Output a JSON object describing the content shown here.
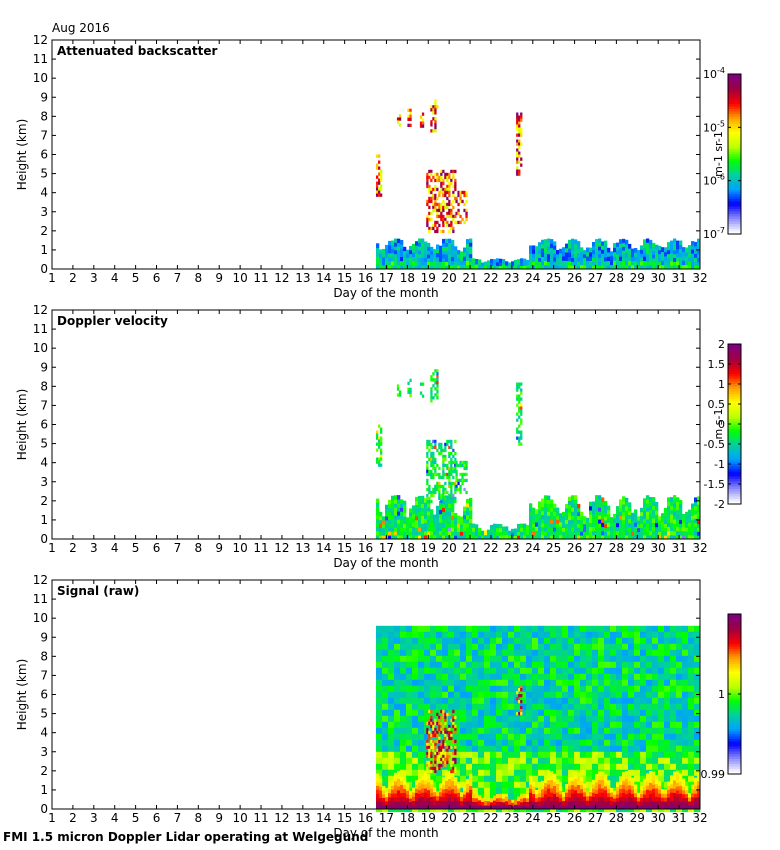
{
  "header": {
    "date": "Aug 2016"
  },
  "footer": {
    "caption": "FMI 1.5 micron Doppler Lidar operating at Welgegund"
  },
  "chart_data": [
    {
      "type": "heatmap",
      "title": "Attenuated backscatter",
      "xlabel": "Day of the month",
      "ylabel": "Height (km)",
      "xlim": [
        1,
        32
      ],
      "ylim": [
        0,
        12
      ],
      "x_ticks": [
        "1",
        "2",
        "3",
        "4",
        "5",
        "6",
        "7",
        "8",
        "9",
        "10",
        "11",
        "12",
        "13",
        "14",
        "15",
        "16",
        "17",
        "18",
        "19",
        "20",
        "21",
        "22",
        "23",
        "24",
        "25",
        "26",
        "27",
        "28",
        "29",
        "30",
        "31",
        "32"
      ],
      "y_ticks": [
        "0",
        "1",
        "2",
        "3",
        "4",
        "5",
        "6",
        "7",
        "8",
        "9",
        "10",
        "11",
        "12"
      ],
      "colorbar": {
        "label": "m-1 sr-1",
        "scale": "log",
        "ticks": [
          "10-7",
          "10-6",
          "10-5",
          "10-4"
        ],
        "colormap": [
          "#ffffff",
          "#8a8aff",
          "#0000ff",
          "#00a0ff",
          "#00d0a0",
          "#00ff00",
          "#c0ff00",
          "#ffff00",
          "#ffa000",
          "#ff0000",
          "#a00040",
          "#800080"
        ]
      },
      "data_start_day": 16.5,
      "features": [
        {
          "kind": "boundary_layer",
          "x": [
            16.5,
            32
          ],
          "top_km": [
            0.6,
            1.6
          ],
          "field": "mid"
        },
        {
          "kind": "cloud",
          "x": [
            16.5,
            16.75
          ],
          "y": [
            3.9,
            6.0
          ],
          "field": "strong"
        },
        {
          "kind": "cloud",
          "x": [
            17.5,
            17.6
          ],
          "y": [
            7.6,
            8.1
          ],
          "field": "strong"
        },
        {
          "kind": "cloud",
          "x": [
            18.0,
            18.15
          ],
          "y": [
            7.5,
            8.4
          ],
          "field": "strong"
        },
        {
          "kind": "cloud",
          "x": [
            18.6,
            18.75
          ],
          "y": [
            7.5,
            8.2
          ],
          "field": "strong"
        },
        {
          "kind": "cloud",
          "x": [
            19.1,
            19.4
          ],
          "y": [
            7.3,
            8.9
          ],
          "field": "strong"
        },
        {
          "kind": "cloud",
          "x": [
            18.9,
            20.3
          ],
          "y": [
            2.0,
            5.2
          ],
          "field": "strong"
        },
        {
          "kind": "cloud",
          "x": [
            20.3,
            20.8
          ],
          "y": [
            2.4,
            4.1
          ],
          "field": "strong"
        },
        {
          "kind": "cloud",
          "x": [
            23.2,
            23.45
          ],
          "y": [
            5.0,
            8.2
          ],
          "field": "strong"
        }
      ]
    },
    {
      "type": "heatmap",
      "title": "Doppler velocity",
      "xlabel": "Day of the month",
      "ylabel": "Height (km)",
      "xlim": [
        1,
        32
      ],
      "ylim": [
        0,
        12
      ],
      "x_ticks": [
        "1",
        "2",
        "3",
        "4",
        "5",
        "6",
        "7",
        "8",
        "9",
        "10",
        "11",
        "12",
        "13",
        "14",
        "15",
        "16",
        "17",
        "18",
        "19",
        "20",
        "21",
        "22",
        "23",
        "24",
        "25",
        "26",
        "27",
        "28",
        "29",
        "30",
        "31",
        "32"
      ],
      "y_ticks": [
        "0",
        "1",
        "2",
        "3",
        "4",
        "5",
        "6",
        "7",
        "8",
        "9",
        "10",
        "11",
        "12"
      ],
      "colorbar": {
        "label": "m s-1",
        "scale": "linear",
        "range": [
          -2,
          2
        ],
        "ticks": [
          "-2",
          "-1.5",
          "-1",
          "-0.5",
          "0",
          "0.5",
          "1",
          "1.5",
          "2"
        ],
        "colormap": [
          "#ffffff",
          "#8a8aff",
          "#0000ff",
          "#00a0ff",
          "#00d0a0",
          "#00ff00",
          "#c0ff00",
          "#ffff00",
          "#ffa000",
          "#ff0000",
          "#a00040",
          "#800080"
        ]
      },
      "data_start_day": 16.5,
      "features": [
        {
          "kind": "boundary_layer",
          "x": [
            16.5,
            32
          ],
          "top_km": [
            0.6,
            2.3
          ],
          "field": "vel"
        },
        {
          "kind": "cloud",
          "x": [
            16.5,
            16.75
          ],
          "y": [
            3.9,
            6.0
          ],
          "field": "vel"
        },
        {
          "kind": "cloud",
          "x": [
            17.5,
            17.6
          ],
          "y": [
            7.6,
            8.1
          ],
          "field": "vel"
        },
        {
          "kind": "cloud",
          "x": [
            18.0,
            18.15
          ],
          "y": [
            7.5,
            8.4
          ],
          "field": "vel"
        },
        {
          "kind": "cloud",
          "x": [
            18.6,
            18.75
          ],
          "y": [
            7.5,
            8.2
          ],
          "field": "vel"
        },
        {
          "kind": "cloud",
          "x": [
            19.1,
            19.4
          ],
          "y": [
            7.3,
            8.9
          ],
          "field": "vel"
        },
        {
          "kind": "cloud",
          "x": [
            18.9,
            20.3
          ],
          "y": [
            2.0,
            5.2
          ],
          "field": "vel"
        },
        {
          "kind": "cloud",
          "x": [
            20.3,
            20.8
          ],
          "y": [
            2.4,
            4.1
          ],
          "field": "vel"
        },
        {
          "kind": "cloud",
          "x": [
            23.2,
            23.45
          ],
          "y": [
            5.0,
            8.2
          ],
          "field": "vel"
        }
      ]
    },
    {
      "type": "heatmap",
      "title": "Signal (raw)",
      "xlabel": "Day of the month",
      "ylabel": "Height (km)",
      "xlim": [
        1,
        32
      ],
      "ylim": [
        0,
        12
      ],
      "x_ticks": [
        "1",
        "2",
        "3",
        "4",
        "5",
        "6",
        "7",
        "8",
        "9",
        "10",
        "11",
        "12",
        "13",
        "14",
        "15",
        "16",
        "17",
        "18",
        "19",
        "20",
        "21",
        "22",
        "23",
        "24",
        "25",
        "26",
        "27",
        "28",
        "29",
        "30",
        "31",
        "32"
      ],
      "y_ticks": [
        "0",
        "1",
        "2",
        "3",
        "4",
        "5",
        "6",
        "7",
        "8",
        "9",
        "10",
        "11",
        "12"
      ],
      "colorbar": {
        "label": "",
        "scale": "linear",
        "range": [
          0.99,
          1.01
        ],
        "ticks": [
          "0.99",
          "1"
        ],
        "colormap": [
          "#ffffff",
          "#8a8aff",
          "#0000ff",
          "#00a0ff",
          "#00d0a0",
          "#00ff00",
          "#c0ff00",
          "#ffff00",
          "#ffa000",
          "#ff0000",
          "#a00040",
          "#800080"
        ]
      },
      "data_start_day": 16.5,
      "data_top_km": 9.6,
      "features": [
        {
          "kind": "noise_field",
          "x": [
            16.5,
            32
          ],
          "y": [
            0,
            9.6
          ],
          "field": "signal"
        },
        {
          "kind": "near_surface_strong",
          "x": [
            16.5,
            32
          ],
          "top_km": [
            0.3,
            2.0
          ]
        },
        {
          "kind": "cloud",
          "x": [
            18.9,
            20.3
          ],
          "y": [
            2.0,
            5.2
          ],
          "field": "strong"
        },
        {
          "kind": "cloud",
          "x": [
            23.2,
            23.45
          ],
          "y": [
            5.0,
            6.5
          ],
          "field": "strong"
        }
      ]
    }
  ]
}
